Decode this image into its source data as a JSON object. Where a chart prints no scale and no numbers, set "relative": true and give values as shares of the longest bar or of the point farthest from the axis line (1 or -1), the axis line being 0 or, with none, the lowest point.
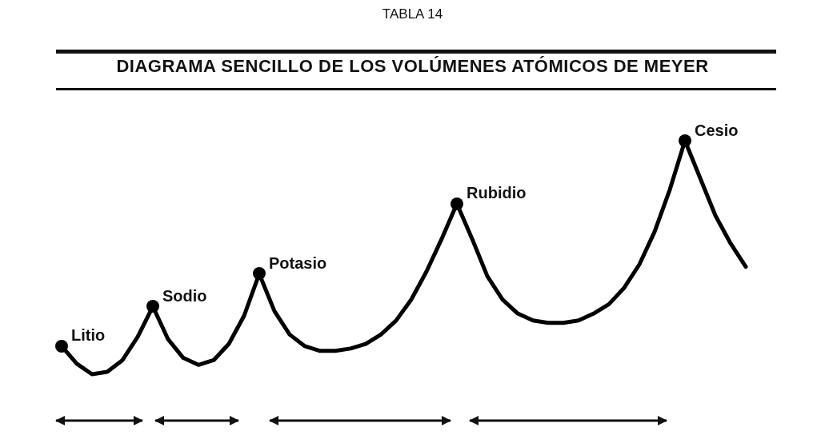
{
  "chart_data": {
    "type": "line",
    "subtitle": "TABLA 14",
    "title": "DIAGRAMA SENCILLO DE LOS VOLÚMENES ATÓMICOS DE MEYER",
    "relative": true,
    "legend": false,
    "line_style": "solid",
    "categories": [
      null,
      null,
      null,
      null,
      null,
      null,
      null,
      null,
      null,
      null,
      null,
      null,
      null,
      null,
      null,
      null,
      null,
      null,
      null,
      null,
      null,
      null,
      null,
      null,
      null,
      null,
      null,
      null,
      null,
      null,
      null,
      null,
      null,
      null,
      null,
      null,
      null,
      null,
      null,
      null,
      null,
      null,
      null,
      null,
      null,
      null
    ],
    "series": [
      {
        "color": "#000000",
        "values": [
          0.12,
          0.045,
          0,
          0.01,
          0.06,
          0.16,
          0.29,
          0.15,
          0.07,
          0.04,
          0.06,
          0.13,
          0.25,
          0.43,
          0.27,
          0.17,
          0.12,
          0.1,
          0.1,
          0.11,
          0.13,
          0.17,
          0.23,
          0.32,
          0.44,
          0.58,
          0.73,
          0.58,
          0.42,
          0.32,
          0.26,
          0.23,
          0.22,
          0.22,
          0.23,
          0.26,
          0.3,
          0.37,
          0.47,
          0.61,
          0.79,
          1,
          0.84,
          0.68,
          0.56,
          0.46
        ]
      }
    ],
    "annotations": [
      "Litio",
      "Sodio",
      "Potasio",
      "Rubidio",
      "Cesio"
    ]
  }
}
